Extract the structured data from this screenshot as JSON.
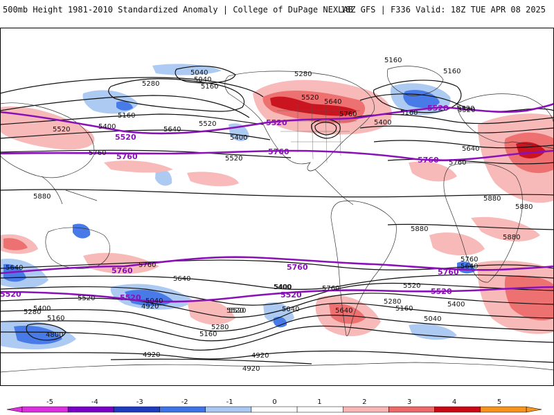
{
  "header": {
    "title": "500mb Height 1981-2010 Standardized Anomaly | College of DuPage NEXLAB",
    "run_info": "18Z GFS | F336 Valid: 18Z TUE APR 08 2025"
  },
  "colors": {
    "purple_contour": "#8a10b8",
    "black_contour": "#111111",
    "frame": "#000000"
  },
  "contour_labels": [
    "5040",
    "5160",
    "5280",
    "5040",
    "5160",
    "5280",
    "5520",
    "5160",
    "5160",
    "5160",
    "5520",
    "5640",
    "5760",
    "5400",
    "5520",
    "5640",
    "5520",
    "5400",
    "5400",
    "5760",
    "5640",
    "5760",
    "5520",
    "5520",
    "5880",
    "5880",
    "5880",
    "5880",
    "5880",
    "5640",
    "5760",
    "5760",
    "5640",
    "5400",
    "5640",
    "5520",
    "5400",
    "5160",
    "5040",
    "4920",
    "5280",
    "5160",
    "5520",
    "5400",
    "5040",
    "5760",
    "5640",
    "5520",
    "5400",
    "5280",
    "5160",
    "5040",
    "4800",
    "4920",
    "4920",
    "4920",
    "5280",
    "5520"
  ],
  "purple_labels": [
    "5520",
    "5520",
    "5760",
    "5760",
    "5760",
    "5520",
    "5760",
    "5760",
    "5760",
    "5520",
    "5520",
    "5520",
    "5520"
  ],
  "colorbar": {
    "ticks": [
      "-5",
      "-4",
      "-3",
      "-2",
      "-1",
      "0",
      "1",
      "2",
      "3",
      "4",
      "5"
    ],
    "colors": [
      "#dc2fe0",
      "#7a00c8",
      "#1f3bc0",
      "#3f74e6",
      "#a9c8f2",
      "#ffffff",
      "#ffffff",
      "#f8b6b6",
      "#ee6a6a",
      "#c80814",
      "#f7941d"
    ]
  }
}
